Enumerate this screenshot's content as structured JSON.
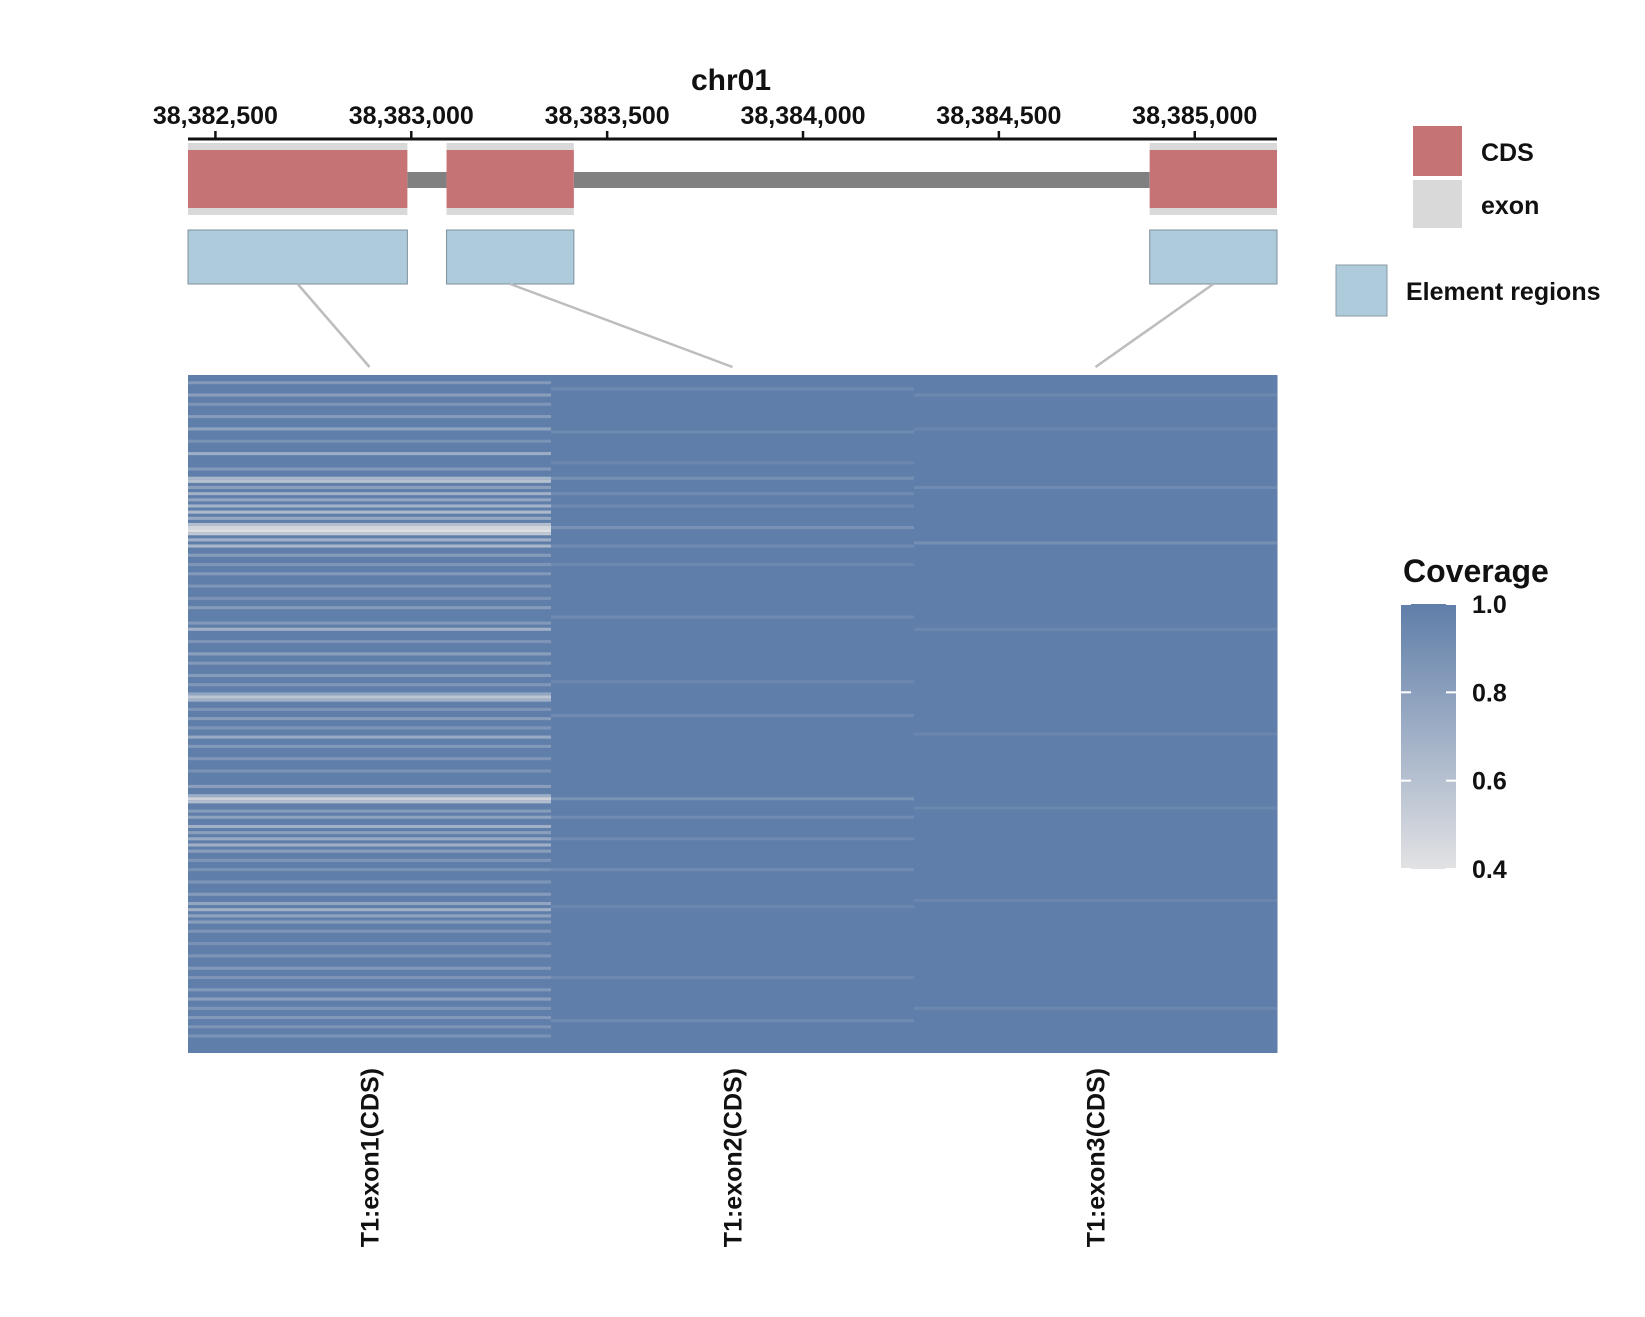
{
  "chart_data": {
    "type": "heatmap",
    "title": "chr01",
    "axis": {
      "range": [
        38382430,
        38385210
      ],
      "ticks": [
        38382500,
        38383000,
        38383500,
        38384000,
        38384500,
        38385000
      ],
      "tick_labels": [
        "38,382,500",
        "38,383,000",
        "38,383,500",
        "38,384,000",
        "38,384,500",
        "38,385,000"
      ]
    },
    "gene_model": {
      "exons": [
        {
          "start": 38382430,
          "end": 38382990
        },
        {
          "start": 38383090,
          "end": 38383415
        },
        {
          "start": 38384885,
          "end": 38385210
        }
      ],
      "element_regions": [
        {
          "start": 38382430,
          "end": 38382990
        },
        {
          "start": 38383090,
          "end": 38383415
        },
        {
          "start": 38384885,
          "end": 38385210
        }
      ]
    },
    "heatmap": {
      "columns": [
        "T1:exon1(CDS)",
        "T1:exon2(CDS)",
        "T1:exon3(CDS)"
      ],
      "rows": 220,
      "default_value": 1.0,
      "low_coverage_rows": [
        [
          [
            2,
            0.84
          ],
          [
            6,
            0.8
          ],
          [
            9,
            0.86
          ],
          [
            13,
            0.82
          ],
          [
            17,
            0.78
          ],
          [
            21,
            0.88
          ],
          [
            25,
            0.72
          ],
          [
            30,
            0.84
          ],
          [
            33,
            0.66
          ],
          [
            34,
            0.6
          ],
          [
            36,
            0.8
          ],
          [
            38,
            0.7
          ],
          [
            40,
            0.76
          ],
          [
            42,
            0.68
          ],
          [
            44,
            0.64
          ],
          [
            46,
            0.74
          ],
          [
            48,
            0.62
          ],
          [
            49,
            0.48
          ],
          [
            50,
            0.42
          ],
          [
            51,
            0.55
          ],
          [
            53,
            0.7
          ],
          [
            55,
            0.66
          ],
          [
            58,
            0.82
          ],
          [
            61,
            0.86
          ],
          [
            64,
            0.84
          ],
          [
            68,
            0.86
          ],
          [
            72,
            0.88
          ],
          [
            75,
            0.82
          ],
          [
            80,
            0.84
          ],
          [
            82,
            0.7
          ],
          [
            86,
            0.86
          ],
          [
            90,
            0.8
          ],
          [
            93,
            0.84
          ],
          [
            97,
            0.82
          ],
          [
            100,
            0.85
          ],
          [
            103,
            0.76
          ],
          [
            104,
            0.58
          ],
          [
            105,
            0.7
          ],
          [
            108,
            0.86
          ],
          [
            111,
            0.82
          ],
          [
            114,
            0.86
          ],
          [
            117,
            0.74
          ],
          [
            120,
            0.84
          ],
          [
            124,
            0.86
          ],
          [
            128,
            0.88
          ],
          [
            133,
            0.8
          ],
          [
            136,
            0.72
          ],
          [
            137,
            0.5
          ],
          [
            138,
            0.62
          ],
          [
            141,
            0.82
          ],
          [
            143,
            0.78
          ],
          [
            146,
            0.7
          ],
          [
            148,
            0.8
          ],
          [
            150,
            0.74
          ],
          [
            152,
            0.7
          ],
          [
            154,
            0.8
          ],
          [
            157,
            0.86
          ],
          [
            160,
            0.88
          ],
          [
            164,
            0.86
          ],
          [
            168,
            0.82
          ],
          [
            171,
            0.76
          ],
          [
            173,
            0.7
          ],
          [
            175,
            0.78
          ],
          [
            177,
            0.8
          ],
          [
            180,
            0.86
          ],
          [
            184,
            0.88
          ],
          [
            188,
            0.86
          ],
          [
            192,
            0.84
          ],
          [
            195,
            0.86
          ],
          [
            199,
            0.84
          ],
          [
            202,
            0.8
          ],
          [
            205,
            0.86
          ],
          [
            208,
            0.84
          ],
          [
            211,
            0.86
          ],
          [
            214,
            0.88
          ]
        ],
        [
          [
            4,
            0.93
          ],
          [
            18,
            0.92
          ],
          [
            28,
            0.94
          ],
          [
            33,
            0.9
          ],
          [
            38,
            0.92
          ],
          [
            42,
            0.93
          ],
          [
            49,
            0.88
          ],
          [
            55,
            0.92
          ],
          [
            61,
            0.94
          ],
          [
            78,
            0.93
          ],
          [
            99,
            0.94
          ],
          [
            110,
            0.92
          ],
          [
            137,
            0.88
          ],
          [
            143,
            0.92
          ],
          [
            150,
            0.93
          ],
          [
            160,
            0.93
          ],
          [
            172,
            0.94
          ],
          [
            195,
            0.94
          ],
          [
            209,
            0.93
          ]
        ],
        [
          [
            6,
            0.94
          ],
          [
            17,
            0.95
          ],
          [
            36,
            0.92
          ],
          [
            54,
            0.9
          ],
          [
            82,
            0.94
          ],
          [
            116,
            0.95
          ],
          [
            140,
            0.94
          ],
          [
            170,
            0.95
          ],
          [
            205,
            0.94
          ]
        ]
      ]
    },
    "legend": {
      "features": [
        {
          "label": "CDS",
          "color": "#c67375"
        },
        {
          "label": "exon",
          "color": "#d9d9d9"
        }
      ],
      "element_label": "Element regions",
      "element_color": "#aecbdc",
      "coverage_title": "Coverage",
      "coverage_ticks": [
        1.0,
        0.8,
        0.6,
        0.4
      ],
      "coverage_tick_labels": [
        "1.0",
        "0.8",
        "0.6",
        "0.4"
      ],
      "coverage_range": [
        0.4,
        1.0
      ],
      "color_low": "#e2e2e4",
      "color_high": "#5f7ea9"
    }
  }
}
